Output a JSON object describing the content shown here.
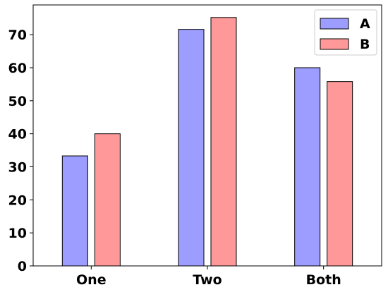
{
  "chart_data": {
    "type": "bar",
    "title": "",
    "xlabel": "",
    "ylabel": "",
    "categories": [
      "One",
      "Two",
      "Both"
    ],
    "series": [
      {
        "name": "A",
        "values": [
          33.3,
          71.6,
          60.0
        ],
        "color": "#9d9dff"
      },
      {
        "name": "B",
        "values": [
          40.0,
          75.2,
          55.8
        ],
        "color": "#ff9999"
      }
    ],
    "ylim": [
      0,
      79
    ],
    "yticks": [
      "0",
      "10",
      "20",
      "30",
      "40",
      "50",
      "60",
      "70"
    ],
    "grid": false,
    "legend": "top-right"
  }
}
